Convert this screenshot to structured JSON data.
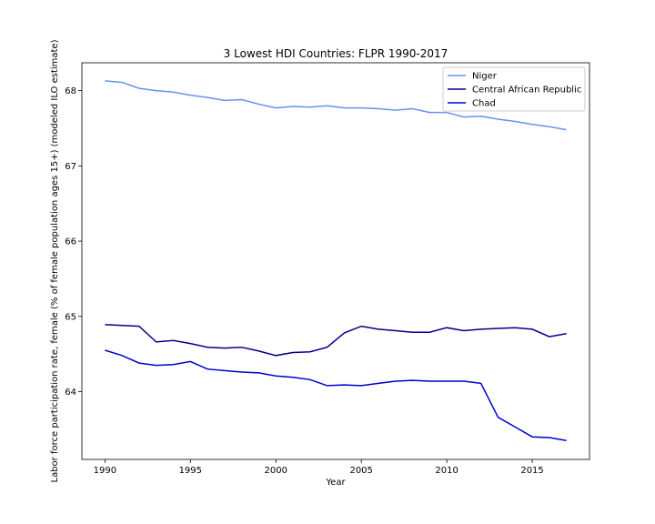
{
  "chart_data": {
    "type": "line",
    "title": "3 Lowest HDI Countries: FLPR 1990-2017",
    "xlabel": "Year",
    "ylabel": "Labor force participation rate, female (% of female population ages 15+) (modeled ILO estimate)",
    "xlim": [
      1988.65,
      2018.35
    ],
    "ylim": [
      63.1,
      68.37
    ],
    "xticks": [
      1990,
      1995,
      2000,
      2005,
      2010,
      2015
    ],
    "yticks": [
      64,
      65,
      66,
      67,
      68
    ],
    "grid": false,
    "legend_position": "top-right",
    "x": [
      1990,
      1991,
      1992,
      1993,
      1994,
      1995,
      1996,
      1997,
      1998,
      1999,
      2000,
      2001,
      2002,
      2003,
      2004,
      2005,
      2006,
      2007,
      2008,
      2009,
      2010,
      2011,
      2012,
      2013,
      2014,
      2015,
      2016,
      2017
    ],
    "series": [
      {
        "name": "Niger",
        "color": "#6495ed",
        "values": [
          68.13,
          68.11,
          68.03,
          68.0,
          67.98,
          67.94,
          67.91,
          67.87,
          67.88,
          67.82,
          67.77,
          67.79,
          67.78,
          67.8,
          67.77,
          67.77,
          67.76,
          67.74,
          67.76,
          67.71,
          67.71,
          67.65,
          67.66,
          67.62,
          67.59,
          67.55,
          67.52,
          67.48
        ]
      },
      {
        "name": "Central African Republic",
        "color": "#00008b",
        "values": [
          64.89,
          64.88,
          64.87,
          64.66,
          64.68,
          64.64,
          64.59,
          64.58,
          64.59,
          64.54,
          64.48,
          64.52,
          64.53,
          64.59,
          64.78,
          64.87,
          64.83,
          64.81,
          64.79,
          64.79,
          64.85,
          64.81,
          64.83,
          64.84,
          64.85,
          64.83,
          64.73,
          64.77
        ]
      },
      {
        "name": "Chad",
        "color": "#0000cd",
        "values": [
          64.55,
          64.48,
          64.38,
          64.35,
          64.36,
          64.4,
          64.3,
          64.28,
          64.26,
          64.25,
          64.21,
          64.19,
          64.16,
          64.08,
          64.09,
          64.08,
          64.11,
          64.14,
          64.15,
          64.14,
          64.14,
          64.14,
          64.11,
          63.66,
          63.53,
          63.4,
          63.39,
          63.35
        ]
      }
    ]
  }
}
